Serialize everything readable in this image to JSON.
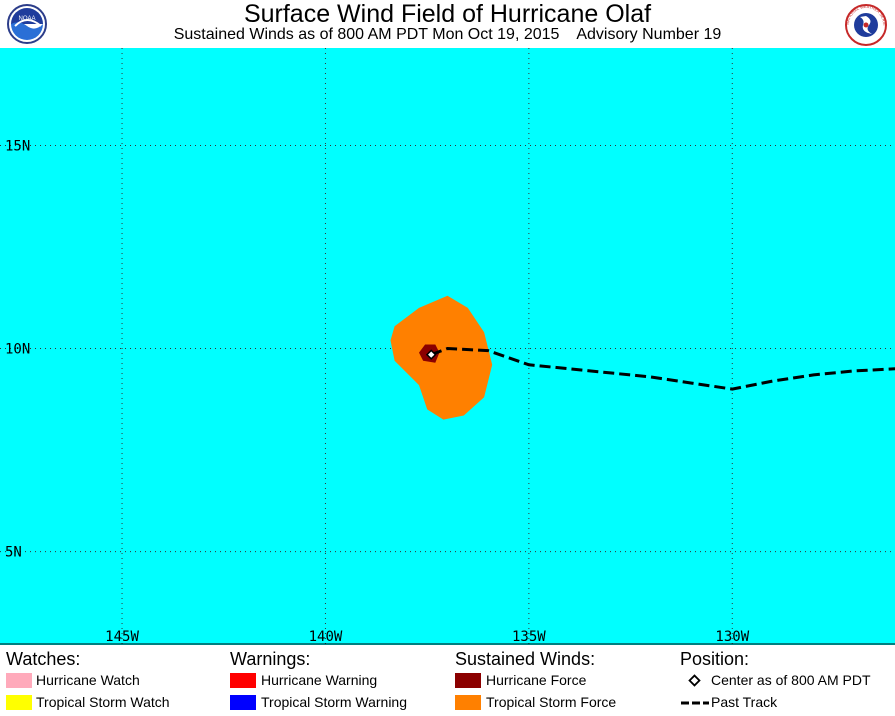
{
  "header": {
    "title": "Surface Wind Field of Hurricane Olaf",
    "subtitle": "Sustained Winds as of 800 AM PDT Mon Oct 19, 2015    Advisory Number 19",
    "left_logo_text": "NOAA",
    "right_logo_text": "NATIONAL WEATHER SERVICE"
  },
  "map": {
    "ocean_color": "#00ffff",
    "extent": {
      "lon_min": -148,
      "lon_max": -126,
      "lat_min": 2.7,
      "lat_max": 17.4
    },
    "lat_labels": [
      {
        "lat": 15,
        "text": "15N"
      },
      {
        "lat": 10,
        "text": "10N"
      },
      {
        "lat": 5,
        "text": "5N"
      }
    ],
    "lon_labels": [
      {
        "lon": -145,
        "text": "145W"
      },
      {
        "lon": -140,
        "text": "140W"
      },
      {
        "lon": -135,
        "text": "135W"
      },
      {
        "lon": -130,
        "text": "130W"
      }
    ],
    "storm_center": {
      "lon": -137.4,
      "lat": 9.85
    },
    "hurricane_force_area": [
      [
        -137.55,
        10.1
      ],
      [
        -137.3,
        10.1
      ],
      [
        -137.2,
        9.9
      ],
      [
        -137.3,
        9.65
      ],
      [
        -137.6,
        9.7
      ],
      [
        -137.7,
        9.9
      ]
    ],
    "tropical_storm_force_area": [
      [
        -138.3,
        10.55
      ],
      [
        -137.7,
        11.0
      ],
      [
        -137.0,
        11.3
      ],
      [
        -136.5,
        11.0
      ],
      [
        -136.1,
        10.4
      ],
      [
        -135.9,
        9.6
      ],
      [
        -136.1,
        8.8
      ],
      [
        -136.6,
        8.35
      ],
      [
        -137.1,
        8.25
      ],
      [
        -137.5,
        8.5
      ],
      [
        -137.7,
        9.1
      ],
      [
        -138.3,
        9.7
      ],
      [
        -138.4,
        10.2
      ]
    ],
    "past_track": [
      [
        -137.4,
        9.85
      ],
      [
        -137.0,
        10.0
      ],
      [
        -136.0,
        9.95
      ],
      [
        -135.0,
        9.6
      ],
      [
        -134.0,
        9.5
      ],
      [
        -133.0,
        9.4
      ],
      [
        -132.0,
        9.3
      ],
      [
        -131.0,
        9.15
      ],
      [
        -130.0,
        9.0
      ],
      [
        -129.0,
        9.2
      ],
      [
        -128.0,
        9.35
      ],
      [
        -127.0,
        9.45
      ],
      [
        -126.0,
        9.5
      ]
    ]
  },
  "legend": {
    "watches": {
      "heading": "Watches:",
      "items": [
        {
          "label": "Hurricane Watch",
          "color": "#ffaabb"
        },
        {
          "label": "Tropical Storm Watch",
          "color": "#ffff00"
        }
      ]
    },
    "warnings": {
      "heading": "Warnings:",
      "items": [
        {
          "label": "Hurricane Warning",
          "color": "#ff0000"
        },
        {
          "label": "Tropical Storm Warning",
          "color": "#0000ff"
        }
      ]
    },
    "sustained_winds": {
      "heading": "Sustained Winds:",
      "items": [
        {
          "label": "Hurricane Force",
          "color": "#8b0000"
        },
        {
          "label": "Tropical Storm Force",
          "color": "#ff8000"
        }
      ]
    },
    "position": {
      "heading": "Position:",
      "items": [
        {
          "label": "Center as of 800 AM PDT"
        },
        {
          "label": "Past Track"
        }
      ]
    }
  }
}
